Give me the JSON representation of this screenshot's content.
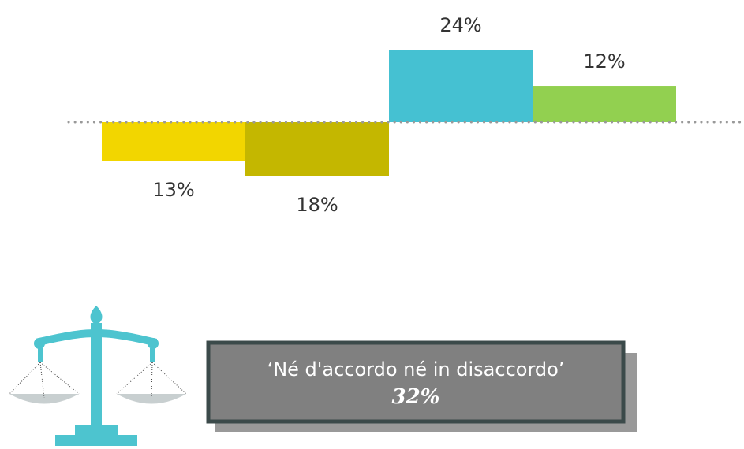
{
  "chart_data": {
    "type": "diverging-bar",
    "categories": [
      null,
      null,
      null,
      null
    ],
    "values": [
      -13,
      -18,
      24,
      12
    ],
    "value_labels": [
      "13%",
      "18%",
      "24%",
      "12%"
    ],
    "colors": [
      "#f2d600",
      "#c4b700",
      "#45c1d2",
      "#92d050"
    ],
    "annotation": "‘Né d'accordo né in disaccordo’",
    "annotation_value": "32%"
  }
}
